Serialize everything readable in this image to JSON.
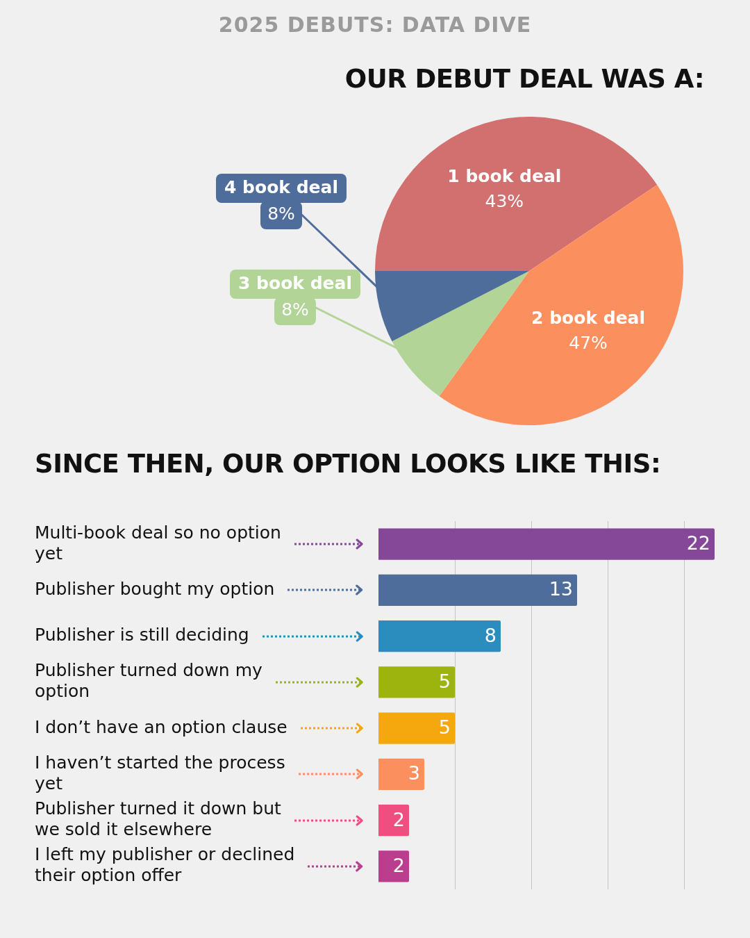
{
  "chart_data": [
    {
      "type": "pie",
      "subtitle": "2025 DEBUTS: DATA DIVE",
      "title": "OUR DEBUT DEAL WAS A:",
      "categories": [
        "1 book deal",
        "2 book deal",
        "3 book deal",
        "4 book deal"
      ],
      "values": [
        43,
        47,
        8,
        8
      ],
      "value_labels": [
        "43%",
        "47%",
        "8%",
        "8%"
      ],
      "colors": [
        "#d27070",
        "#fc8f5e",
        "#b2d496",
        "#4f6d9a"
      ]
    },
    {
      "type": "bar",
      "orientation": "horizontal",
      "title": "SINCE THEN, OUR OPTION LOOKS LIKE THIS:",
      "categories": [
        "Multi-book deal so no option yet",
        "Publisher bought my option",
        "Publisher is still deciding",
        "Publisher turned down my option",
        "I don’t have an option clause",
        "I haven’t started the process yet",
        "Publisher turned it down but we sold it elsewhere",
        "I left my publisher or declined their option offer"
      ],
      "values": [
        22,
        13,
        8,
        5,
        5,
        3,
        2,
        2
      ],
      "colors": [
        "#854798",
        "#4f6d9a",
        "#2b8cbe",
        "#9cb40d",
        "#f4a80e",
        "#fc8f5e",
        "#ee4f80",
        "#bb3d8e"
      ],
      "xlim": [
        0,
        22
      ],
      "xticks": [
        {
          "value": 5,
          "label": null
        },
        {
          "value": 10,
          "label": null
        },
        {
          "value": 15,
          "label": null
        },
        {
          "value": 20,
          "label": null
        }
      ],
      "grid": "x",
      "tick_labels": "y",
      "data_labels": true
    }
  ]
}
